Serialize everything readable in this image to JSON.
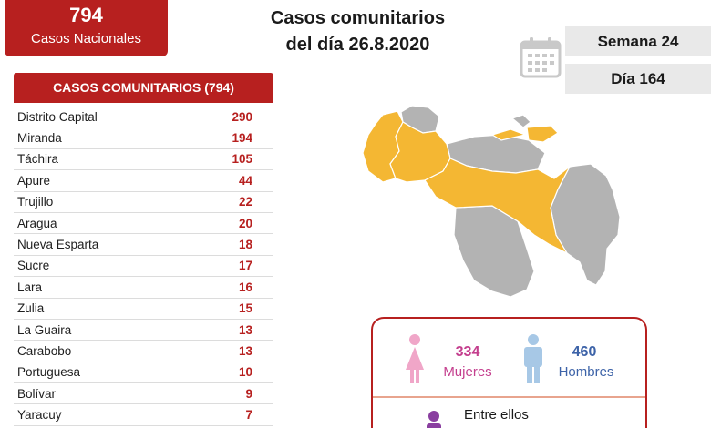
{
  "national": {
    "count": "794",
    "label": "Casos Nacionales"
  },
  "title": {
    "line1": "Casos comunitarios",
    "line2": "del día 26.8.2020"
  },
  "week": "Semana 24",
  "day": "Día 164",
  "table": {
    "header": "CASOS COMUNITARIOS (794)",
    "rows": [
      {
        "state": "Distrito Capital",
        "count": "290"
      },
      {
        "state": "Miranda",
        "count": "194"
      },
      {
        "state": "Táchira",
        "count": "105"
      },
      {
        "state": "Apure",
        "count": "44"
      },
      {
        "state": "Trujillo",
        "count": "22"
      },
      {
        "state": "Aragua",
        "count": "20"
      },
      {
        "state": "Nueva Esparta",
        "count": "18"
      },
      {
        "state": "Sucre",
        "count": "17"
      },
      {
        "state": "Lara",
        "count": "16"
      },
      {
        "state": "Zulia",
        "count": "15"
      },
      {
        "state": "La Guaira",
        "count": "13"
      },
      {
        "state": "Carabobo",
        "count": "13"
      },
      {
        "state": "Portuguesa",
        "count": "10"
      },
      {
        "state": "Bolívar",
        "count": "9"
      },
      {
        "state": "Yaracuy",
        "count": "7"
      }
    ]
  },
  "gender": {
    "women_count": "334",
    "women_label": "Mujeres",
    "men_count": "460",
    "men_label": "Hombres",
    "among": "Entre ellos"
  },
  "colors": {
    "brand_red": "#b7201f",
    "map_affected": "#f4b733",
    "map_unaffected": "#b3b3b3",
    "women": "#c43f8e",
    "men": "#3d63a8"
  }
}
